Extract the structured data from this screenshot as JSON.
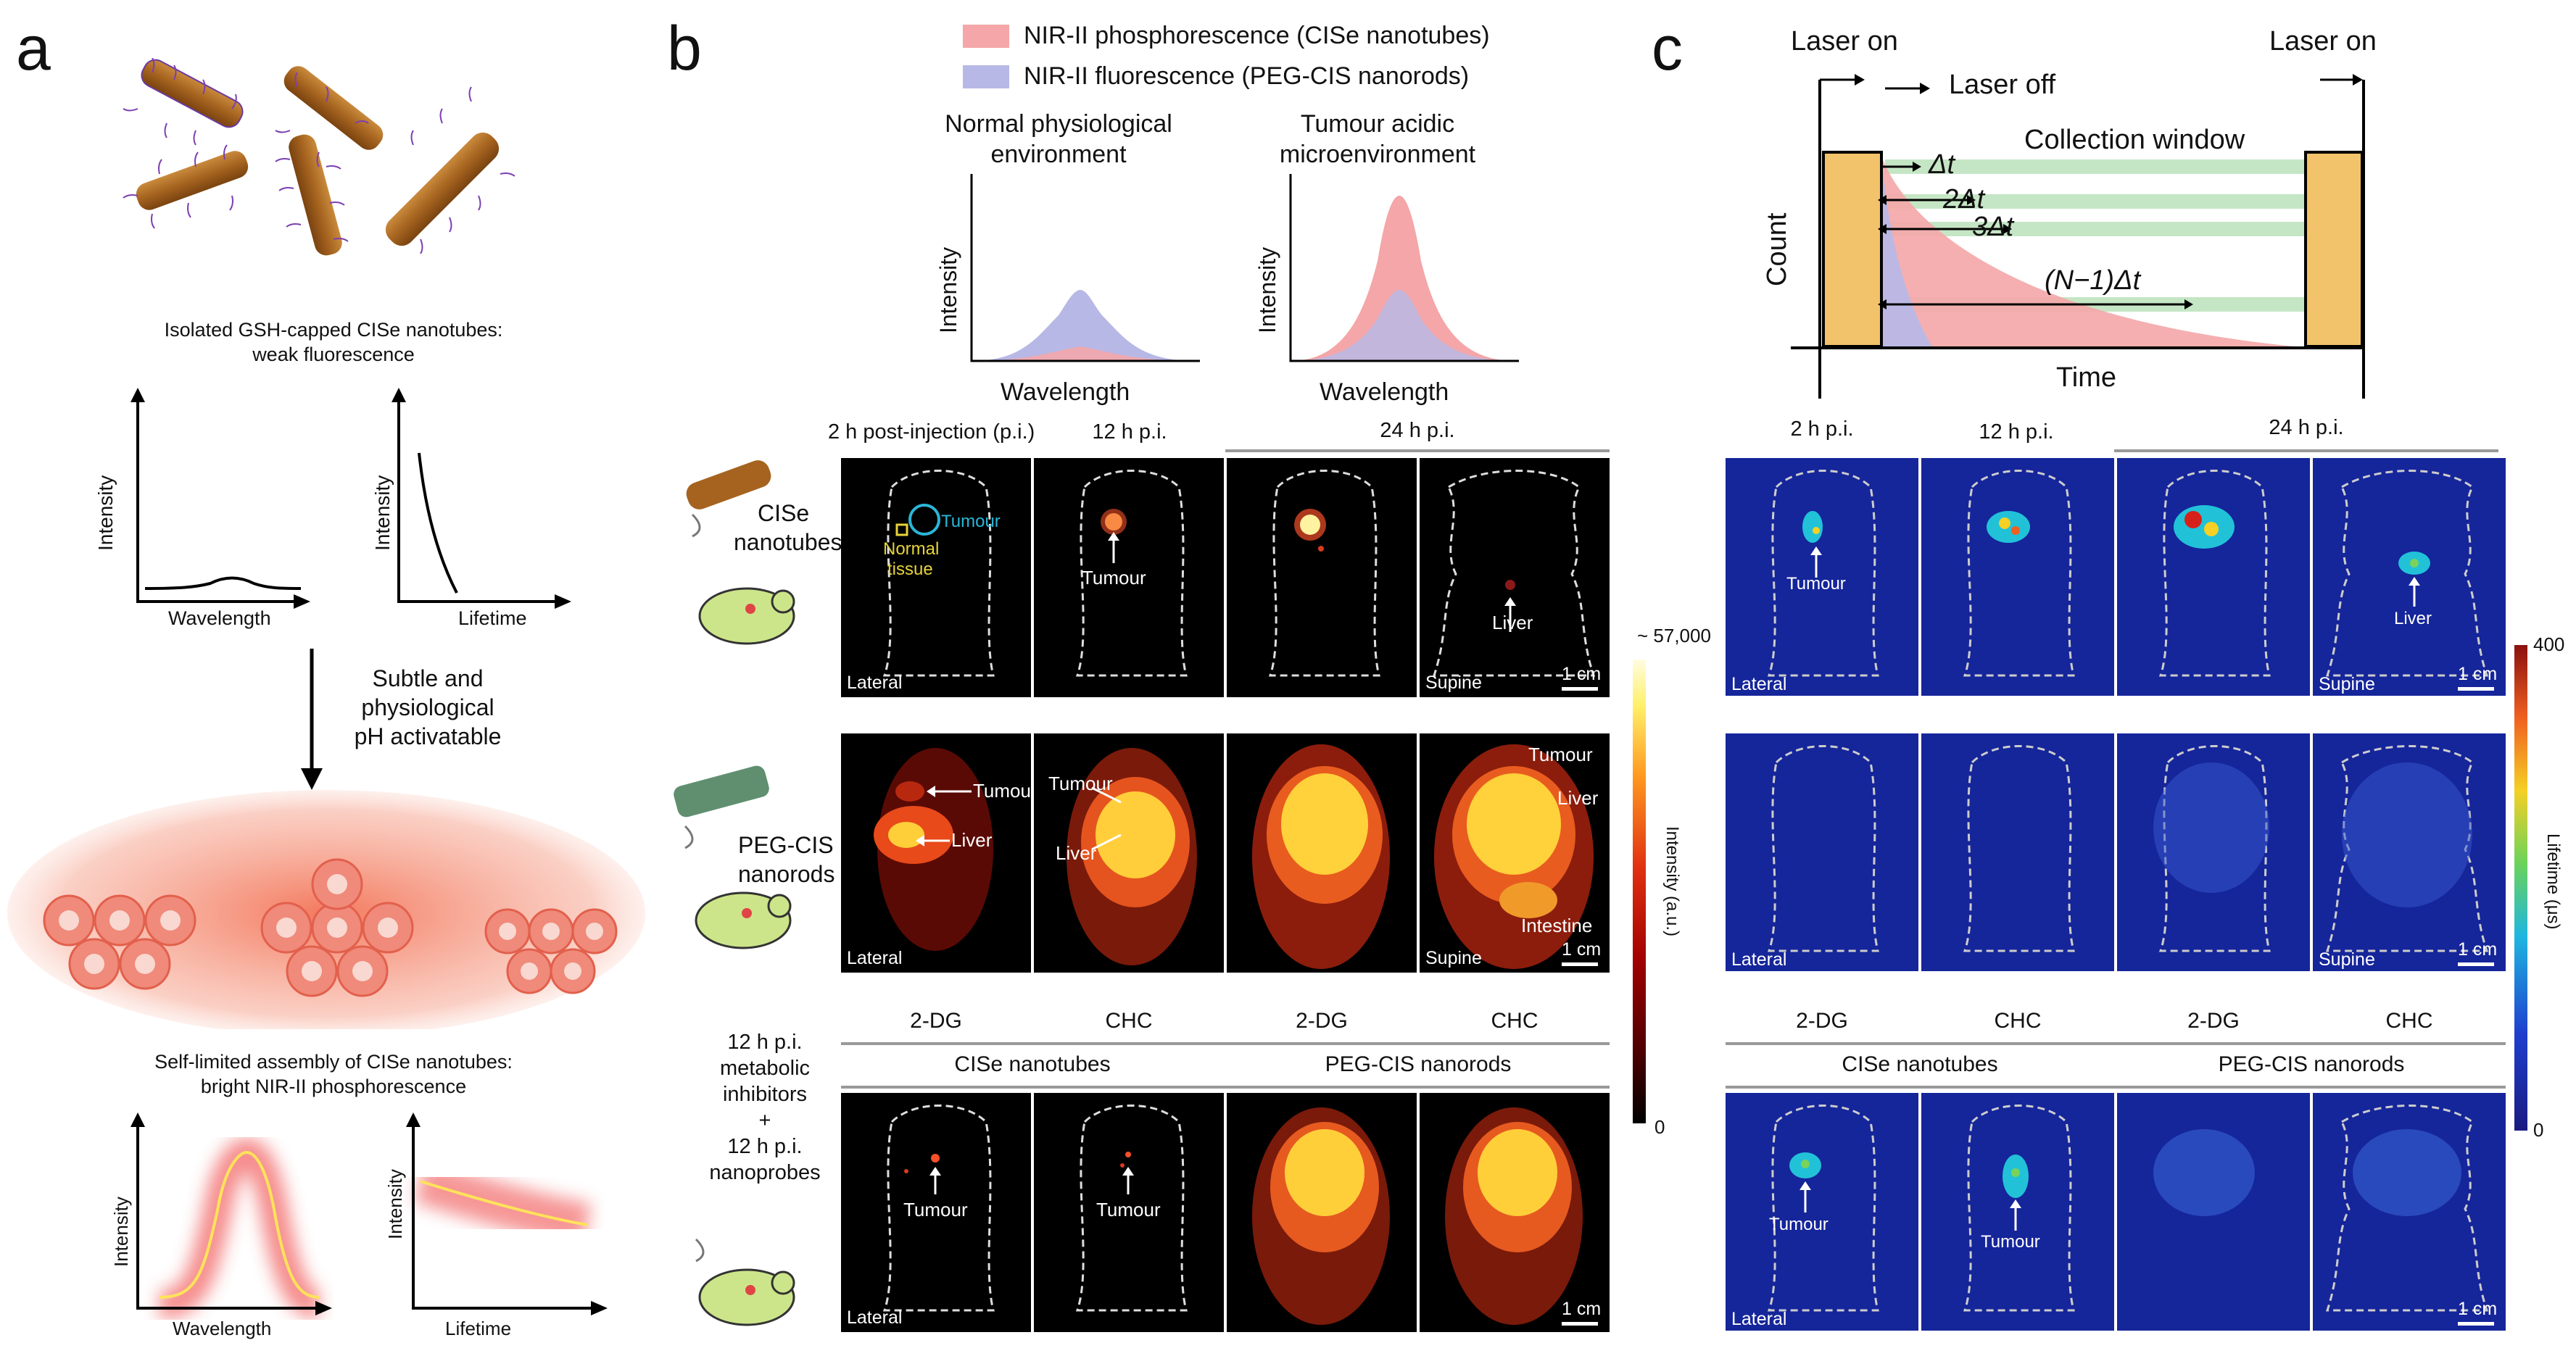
{
  "panel_a": {
    "letter": "a",
    "caption_top_1": "Isolated GSH-capped CISe nanotubes:",
    "caption_top_2": "weak fluorescence",
    "plot1": {
      "ylabel": "Intensity",
      "xlabel": "Wavelength"
    },
    "plot2": {
      "ylabel": "Intensity",
      "xlabel": "Lifetime"
    },
    "arrow_text_1": "Subtle and",
    "arrow_text_2": "physiological",
    "arrow_text_3": "pH activatable",
    "caption_bottom_1": "Self-limited assembly of CISe nanotubes:",
    "caption_bottom_2": "bright NIR-II phosphorescence",
    "plot3": {
      "ylabel": "Intensity",
      "xlabel": "Wavelength"
    },
    "plot4": {
      "ylabel": "Intensity",
      "xlabel": "Lifetime"
    }
  },
  "panel_b": {
    "letter": "b",
    "legend_1": "NIR-II phosphorescence (CISe nanotubes)",
    "legend_2": "NIR-II fluorescence (PEG-CIS nanorods)",
    "legend_colors": {
      "phos": "#f4a6a8",
      "fluor": "#b8b8e6"
    },
    "spec_left_title_1": "Normal physiological",
    "spec_left_title_2": "environment",
    "spec_right_title_1": "Tumour acidic",
    "spec_right_title_2": "microenvironment",
    "ylabel": "Intensity",
    "xlabel": "Wavelength",
    "col_2h": "2 h post-injection (p.i.)",
    "col_12h": "12 h p.i.",
    "col_24h": "24 h p.i.",
    "row1_label_1": "CISe",
    "row1_label_2": "nanotubes",
    "row2_label_1": "PEG-CIS",
    "row2_label_2": "nanorods",
    "tumour": "Tumour",
    "normal_1": "Normal",
    "normal_2": "tissue",
    "liver": "Liver",
    "intestine": "Intestine",
    "lateral": "Lateral",
    "supine": "Supine",
    "scale": "1 cm",
    "inhib_1": "12 h p.i.",
    "inhib_2": "metabolic",
    "inhib_3": "inhibitors",
    "inhib_4": "+",
    "inhib_5": "12 h p.i.",
    "inhib_6": "nanoprobes",
    "dg": "2-DG",
    "chc": "CHC",
    "cise_nanotubes": "CISe nanotubes",
    "peg_nanorods": "PEG-CIS nanorods",
    "colorbar_max": "~ 57,000",
    "colorbar_min": "0",
    "colorbar_label": "Intensity (a.u.)"
  },
  "panel_c": {
    "letter": "c",
    "laser_on_left": "Laser on",
    "laser_off": "Laser off",
    "laser_on_right": "Laser on",
    "collection_window": "Collection window",
    "count": "Count",
    "time": "Time",
    "dt1": "Δt",
    "dt2": "2Δt",
    "dt3": "3Δt",
    "dtn": "(N−1)Δt",
    "col_2h": "2 h p.i.",
    "col_12h": "12 h p.i.",
    "col_24h": "24 h p.i.",
    "colorbar_max": "400",
    "colorbar_min": "0",
    "colorbar_label": "Lifetime (μs)"
  }
}
